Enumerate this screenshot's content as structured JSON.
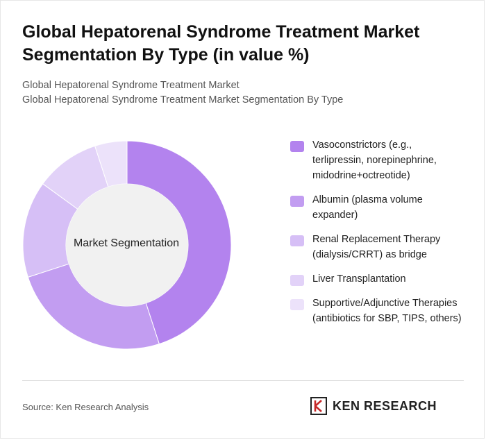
{
  "header": {
    "title": "Global Hepatorenal Syndrome Treatment Market Segmentation By Type (in value %)",
    "subtitle_line1": "Global Hepatorenal Syndrome Treatment Market",
    "subtitle_line2": "Global Hepatorenal Syndrome Treatment Market Segmentation By Type"
  },
  "chart_data": {
    "type": "pie",
    "style": "donut",
    "center_label": "Market Segmentation",
    "legend_position": "right",
    "categories": [
      "Vasoconstrictors (e.g., terlipressin, norepinephrine, midodrine+octreotide)",
      "Albumin (plasma volume expander)",
      "Renal Replacement Therapy (dialysis/CRRT) as bridge",
      "Liver Transplantation",
      "Supportive/Adjunctive Therapies (antibiotics for SBP, TIPS, others)"
    ],
    "values": [
      45,
      25,
      15,
      10,
      5
    ],
    "colors": [
      "#b383ee",
      "#c29df1",
      "#d6bff6",
      "#e2d2f8",
      "#ece2fa"
    ]
  },
  "footer": {
    "source": "Source: Ken Research Analysis",
    "logo_text": "KEN RESEARCH",
    "logo_icon": "ken-research-logo-icon"
  }
}
